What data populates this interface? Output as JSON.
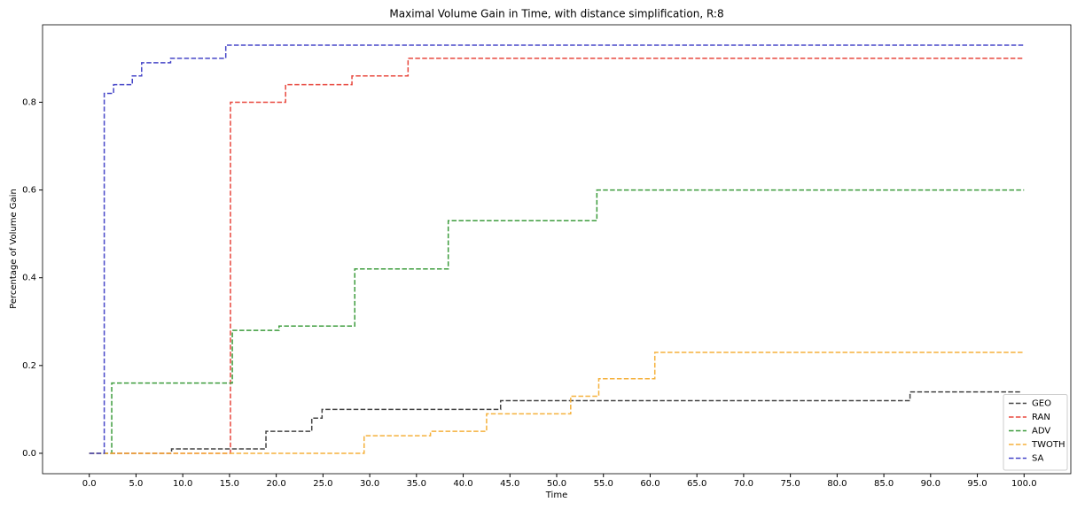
{
  "chart_data": {
    "type": "step",
    "title": "Maximal Volume Gain in Time, with distance simplification, R:8",
    "xlabel": "Time",
    "ylabel": "Percentage of Volume Gain",
    "xlim": [
      -5,
      105
    ],
    "ylim": [
      -0.0465,
      0.9765
    ],
    "xticks": [
      {
        "value": 0,
        "label": "0.0"
      },
      {
        "value": 5,
        "label": "5.0"
      },
      {
        "value": 10,
        "label": "10.0"
      },
      {
        "value": 15,
        "label": "15.0"
      },
      {
        "value": 20,
        "label": "20.0"
      },
      {
        "value": 25,
        "label": "25.0"
      },
      {
        "value": 30,
        "label": "30.0"
      },
      {
        "value": 35,
        "label": "35.0"
      },
      {
        "value": 40,
        "label": "40.0"
      },
      {
        "value": 45,
        "label": "45.0"
      },
      {
        "value": 50,
        "label": "50.0"
      },
      {
        "value": 55,
        "label": "55.0"
      },
      {
        "value": 60,
        "label": "60.0"
      },
      {
        "value": 65,
        "label": "65.0"
      },
      {
        "value": 70,
        "label": "70.0"
      },
      {
        "value": 75,
        "label": "75.0"
      },
      {
        "value": 80,
        "label": "80.0"
      },
      {
        "value": 85,
        "label": "85.0"
      },
      {
        "value": 90,
        "label": "90.0"
      },
      {
        "value": 95,
        "label": "95.0"
      },
      {
        "value": 100,
        "label": "100.0"
      }
    ],
    "yticks": [
      {
        "value": 0,
        "label": "0.0"
      },
      0.2,
      0.4,
      0.6,
      0.8
    ],
    "legend": "lower right",
    "series": [
      {
        "name": "GEO",
        "color": "#444444",
        "x": [
          0,
          8.8,
          18.9,
          23.8,
          24.9,
          44.0,
          87.8,
          99.6
        ],
        "values": [
          0,
          0.01,
          0.05,
          0.08,
          0.1,
          0.12,
          0.14,
          0.14
        ]
      },
      {
        "name": "RAN",
        "color": "#e8483e",
        "x": [
          0,
          15.1,
          21.0,
          28.1,
          34.1,
          100
        ],
        "values": [
          0,
          0.8,
          0.84,
          0.86,
          0.9,
          0.9
        ]
      },
      {
        "name": "ADV",
        "color": "#3c9c3c",
        "x": [
          0,
          2.4,
          15.3,
          20.3,
          28.4,
          38.4,
          54.3,
          100
        ],
        "values": [
          0,
          0.16,
          0.28,
          0.29,
          0.42,
          0.53,
          0.6,
          0.6
        ]
      },
      {
        "name": "TWOTH",
        "color": "#f5b13c",
        "x": [
          0,
          29.4,
          36.5,
          42.5,
          51.5,
          54.5,
          60.5,
          100
        ],
        "values": [
          0,
          0.04,
          0.05,
          0.09,
          0.13,
          0.17,
          0.23,
          0.23
        ]
      },
      {
        "name": "SA",
        "color": "#4646c8",
        "x": [
          0,
          1.6,
          2.6,
          4.6,
          5.6,
          8.7,
          14.6,
          100
        ],
        "values": [
          0,
          0.82,
          0.84,
          0.86,
          0.89,
          0.9,
          0.93,
          0.93
        ]
      }
    ]
  }
}
